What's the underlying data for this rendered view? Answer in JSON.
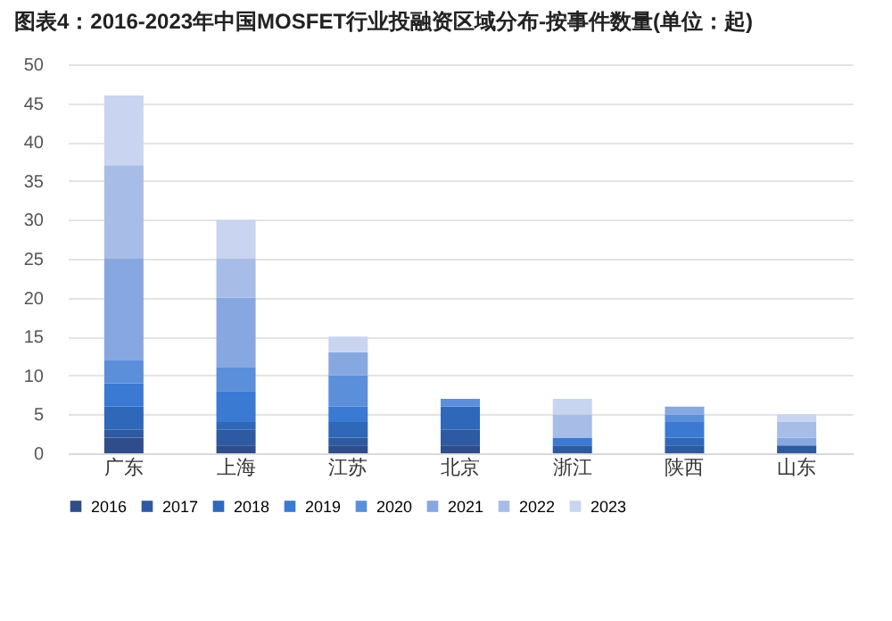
{
  "chart_data": {
    "type": "bar",
    "title": "图表4：2016-2023年中国MOSFET行业投融资区域分布-按事件数量(单位：起)",
    "categories": [
      "广东",
      "上海",
      "江苏",
      "北京",
      "浙江",
      "陕西",
      "山东"
    ],
    "stacked": true,
    "ylim": [
      0,
      50
    ],
    "yticks": [
      0,
      5,
      10,
      15,
      20,
      25,
      30,
      35,
      40,
      45,
      50
    ],
    "grid": "y",
    "legend": "bottom",
    "series": [
      {
        "name": "2016",
        "color": "#2f4d8a",
        "values": [
          2,
          1,
          1,
          1,
          0,
          0,
          0
        ]
      },
      {
        "name": "2017",
        "color": "#2d5aa0",
        "values": [
          1,
          2,
          1,
          2,
          1,
          1,
          1
        ]
      },
      {
        "name": "2018",
        "color": "#2f68b8",
        "values": [
          3,
          1,
          2,
          3,
          0,
          1,
          0
        ]
      },
      {
        "name": "2019",
        "color": "#3a7ad2",
        "values": [
          3,
          4,
          2,
          0,
          1,
          2,
          0
        ]
      },
      {
        "name": "2020",
        "color": "#5b8fda",
        "values": [
          3,
          3,
          4,
          1,
          0,
          1,
          0
        ]
      },
      {
        "name": "2021",
        "color": "#86a7e0",
        "values": [
          13,
          9,
          3,
          0,
          0,
          1,
          1
        ]
      },
      {
        "name": "2022",
        "color": "#a8bce8",
        "values": [
          12,
          5,
          0,
          0,
          3,
          0,
          2
        ]
      },
      {
        "name": "2023",
        "color": "#c8d4f0",
        "values": [
          9,
          5,
          2,
          0,
          2,
          0,
          1
        ]
      }
    ]
  }
}
